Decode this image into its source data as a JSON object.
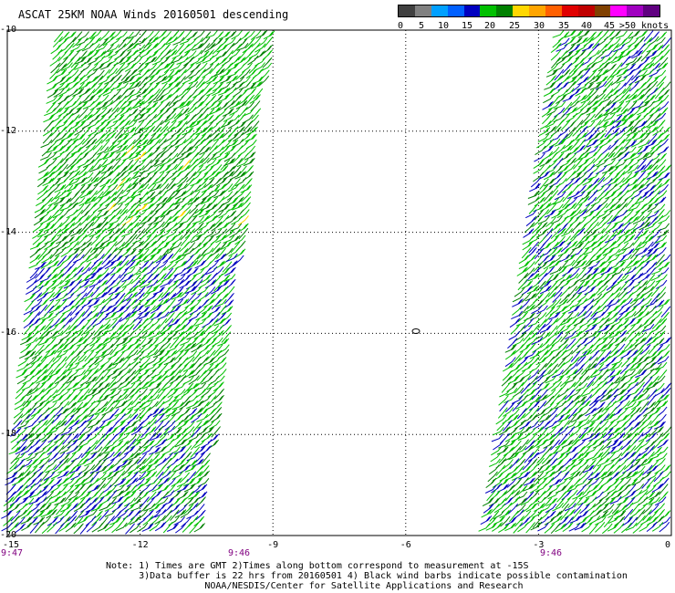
{
  "title": "ASCAT 25KM NOAA Winds 20160501 descending",
  "legend": {
    "colors": [
      "#404040",
      "#808080",
      "#00a0ff",
      "#0060ff",
      "#0000c0",
      "#00c000",
      "#008000",
      "#ffd700",
      "#ffa500",
      "#ff6000",
      "#e00000",
      "#c00000",
      "#804000",
      "#ff00ff",
      "#a000c0",
      "#600080"
    ],
    "labels": [
      "0",
      "5",
      "10",
      "15",
      "20",
      "25",
      "30",
      "35",
      "40",
      "45",
      ">50 knots"
    ]
  },
  "y_axis": {
    "labels": [
      "-10",
      "-12",
      "-14",
      "-16",
      "-18",
      "-20"
    ]
  },
  "x_axis": {
    "labels": [
      "-15",
      "-12",
      "-9",
      "-6",
      "-3",
      "0"
    ]
  },
  "times": {
    "left": "9:47",
    "mid": "9:46",
    "right": "9:46"
  },
  "island_marker": "o",
  "notes": [
    "Note: 1) Times are GMT 2)Times along bottom correspond to measurement at -15S",
    "      3)Data buffer is 22 hrs from 20160501 4) Black wind barbs indicate possible contamination",
    "                  NOAA/NESDIS/Center for Satellite Applications and Research"
  ],
  "map_data": {
    "lon_range": [
      -15,
      0
    ],
    "lat_range": [
      -20,
      -10
    ],
    "swaths": [
      {
        "name": "left",
        "lat_top": -10,
        "lat_bottom": -20,
        "lon_left_top": -13.8,
        "lon_right_top": -9.0,
        "lon_left_bottom": -15.0,
        "lon_right_bottom": -10.6
      },
      {
        "name": "right",
        "lat_top": -10,
        "lat_bottom": -20,
        "lon_left_top": -2.5,
        "lon_right_top": 0,
        "lon_left_bottom": -4.2,
        "lon_right_bottom": 0
      }
    ]
  }
}
